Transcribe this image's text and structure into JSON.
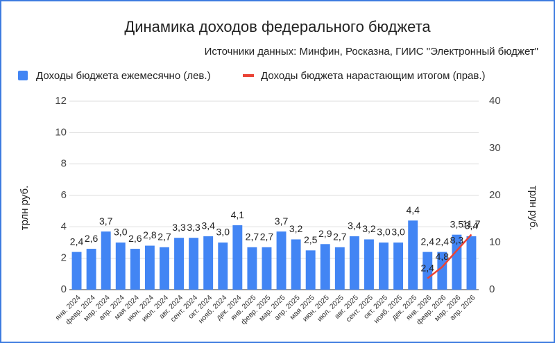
{
  "chart_data": {
    "type": "bar",
    "title": "Динамика доходов федерального бюджета",
    "subtitle": "Источники данных: Минфин, Росказна, ГИИС \"Электронный бюджет\"",
    "ylabel": "трлн руб.",
    "y2label": "трлн руб.",
    "categories": [
      "янв. 2024",
      "февр. 2024",
      "мар. 2024",
      "апр. 2024",
      "мая 2024",
      "июн. 2024",
      "июл. 2024",
      "авг. 2024",
      "сент. 2024",
      "окт. 2024",
      "нояб. 2024",
      "дек. 2024",
      "янв. 2025",
      "февр. 2025",
      "мар. 2025",
      "апр. 2025",
      "мая 2025",
      "июн. 2025",
      "июл. 2025",
      "авг. 2025",
      "сент. 2025",
      "окт. 2025",
      "нояб. 2025",
      "дек. 2025",
      "янв. 2026",
      "февр. 2026",
      "мар. 2026",
      "апр. 2026"
    ],
    "series": [
      {
        "name": "Доходы бюджета ежемесячно (лев.)",
        "type": "bar",
        "color": "#4285f4",
        "label_color": "#5a95f5",
        "values": [
          2.4,
          2.6,
          3.7,
          3.0,
          2.6,
          2.8,
          2.7,
          3.3,
          3.3,
          3.4,
          3.0,
          4.1,
          2.7,
          2.7,
          3.7,
          3.2,
          2.5,
          2.9,
          2.7,
          3.4,
          3.2,
          3.0,
          3.0,
          4.4,
          2.4,
          2.4,
          3.5,
          3.4
        ],
        "value_labels": [
          "2,4",
          "2,6",
          "3,7",
          "3,0",
          "2,6",
          "2,8",
          "2,7",
          "3,3",
          "3,3",
          "3,4",
          "3,0",
          "4,1",
          "2,7",
          "2,7",
          "3,7",
          "3,2",
          "2,5",
          "2,9",
          "2,7",
          "3,4",
          "3,2",
          "3,0",
          "3,0",
          "4,4",
          "2,4",
          "2,4",
          "3,5",
          "3,4"
        ]
      },
      {
        "name": "Доходы бюджета нарастающим итогом (прав.)",
        "type": "line",
        "axis": "y2",
        "color": "#ea4335",
        "label_color": "#ea4335",
        "values": [
          null,
          null,
          null,
          null,
          null,
          null,
          null,
          null,
          null,
          null,
          null,
          null,
          null,
          null,
          null,
          null,
          null,
          null,
          null,
          null,
          null,
          null,
          null,
          null,
          2.4,
          4.8,
          8.3,
          11.7
        ],
        "value_labels": [
          null,
          null,
          null,
          null,
          null,
          null,
          null,
          null,
          null,
          null,
          null,
          null,
          null,
          null,
          null,
          null,
          null,
          null,
          null,
          null,
          null,
          null,
          null,
          null,
          "2,4",
          "4,8",
          "8,3",
          "11,7"
        ]
      }
    ],
    "ylim": [
      0,
      12
    ],
    "yticks": [
      0,
      2,
      4,
      6,
      8,
      10,
      12
    ],
    "y2lim": [
      0,
      40
    ],
    "y2ticks": [
      0,
      10,
      20,
      30,
      40
    ],
    "grid": true,
    "legend": "top"
  }
}
